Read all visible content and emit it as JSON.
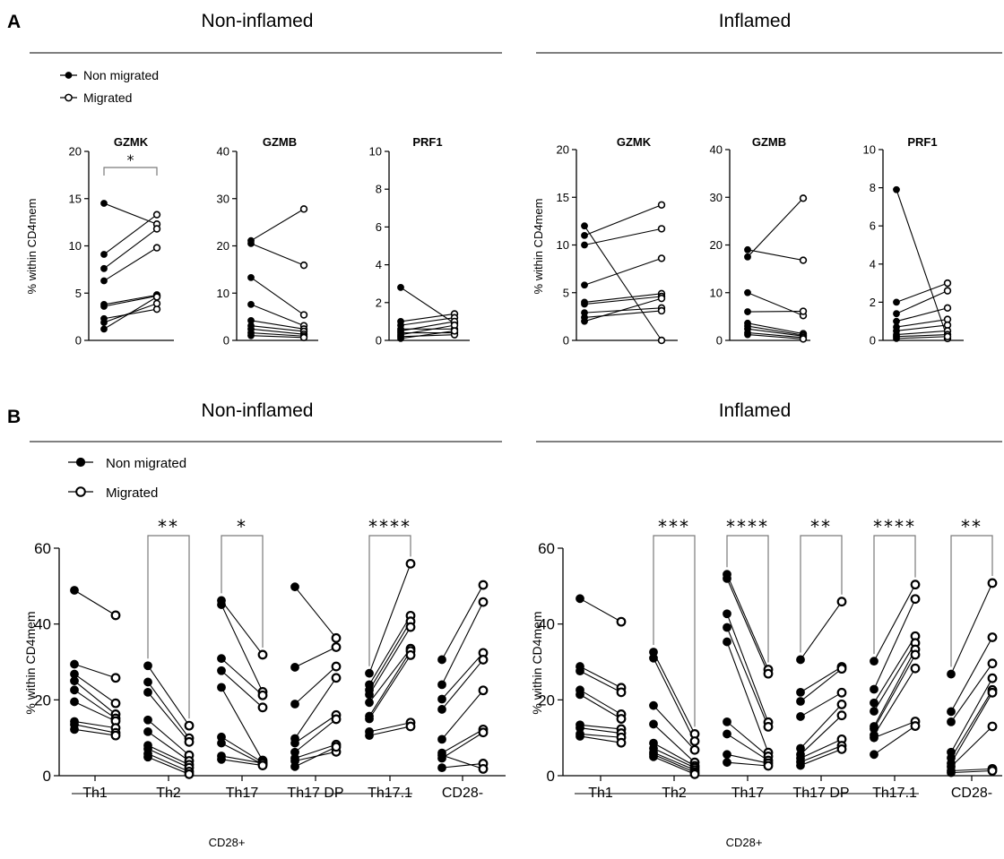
{
  "panels": [
    {
      "letter": "A",
      "headings": [
        "Non-inflamed",
        "Inflamed"
      ]
    },
    {
      "letter": "B",
      "headings": [
        "Non-inflamed",
        "Inflamed"
      ]
    }
  ],
  "legend": {
    "filled": "Non migrated",
    "open": "Migrated"
  },
  "group_label": "CD28+",
  "chart_data": [
    {
      "id": "A-NI-GZMK",
      "type": "line",
      "title": "GZMK",
      "ylabel": "% within CD4mem",
      "ylim": [
        0,
        20
      ],
      "yticks": [
        0,
        5,
        10,
        15,
        20
      ],
      "significance": "*",
      "series": [
        {
          "values": [
            [
              14.5,
              12.3
            ],
            [
              9.1,
              13.3
            ],
            [
              7.6,
              11.8
            ],
            [
              6.3,
              9.8
            ],
            [
              3.8,
              4.8
            ],
            [
              3.6,
              4.7
            ],
            [
              2.3,
              3.3
            ],
            [
              1.9,
              3.9
            ],
            [
              1.2,
              4.6
            ]
          ]
        }
      ]
    },
    {
      "id": "A-NI-GZMB",
      "type": "line",
      "title": "GZMB",
      "ylabel": "",
      "ylim": [
        0,
        40
      ],
      "yticks": [
        0,
        10,
        20,
        30,
        40
      ],
      "series": [
        {
          "values": [
            [
              21.1,
              27.8
            ],
            [
              20.5,
              15.9
            ],
            [
              13.3,
              5.4
            ],
            [
              7.6,
              3.1
            ],
            [
              4.2,
              2.4
            ],
            [
              3.1,
              1.9
            ],
            [
              2.4,
              1.3
            ],
            [
              1.6,
              0.9
            ],
            [
              1.0,
              0.6
            ]
          ]
        }
      ]
    },
    {
      "id": "A-NI-PRF1",
      "type": "line",
      "title": "PRF1",
      "ylabel": "",
      "ylim": [
        0,
        10
      ],
      "yticks": [
        0,
        2,
        4,
        6,
        8,
        10
      ],
      "series": [
        {
          "values": [
            [
              2.8,
              0.9
            ],
            [
              1.0,
              1.4
            ],
            [
              0.8,
              1.2
            ],
            [
              0.6,
              0.6
            ],
            [
              0.5,
              1.0
            ],
            [
              0.4,
              0.4
            ],
            [
              0.3,
              0.8
            ],
            [
              0.2,
              0.3
            ],
            [
              0.1,
              0.5
            ]
          ]
        }
      ]
    },
    {
      "id": "A-I-GZMK",
      "type": "line",
      "title": "GZMK",
      "ylabel": "% within CD4mem",
      "ylim": [
        0,
        20
      ],
      "yticks": [
        0,
        5,
        10,
        15,
        20
      ],
      "series": [
        {
          "values": [
            [
              12.0,
              0.0
            ],
            [
              11.0,
              14.2
            ],
            [
              10.0,
              11.7
            ],
            [
              5.8,
              8.6
            ],
            [
              4.0,
              4.9
            ],
            [
              3.8,
              4.6
            ],
            [
              2.9,
              3.4
            ],
            [
              2.4,
              3.1
            ],
            [
              2.0,
              4.4
            ]
          ]
        }
      ]
    },
    {
      "id": "A-I-GZMB",
      "type": "line",
      "title": "GZMB",
      "ylabel": "",
      "ylim": [
        0,
        40
      ],
      "yticks": [
        0,
        10,
        20,
        30,
        40
      ],
      "series": [
        {
          "values": [
            [
              19.0,
              16.8
            ],
            [
              17.5,
              29.8
            ],
            [
              10.0,
              5.2
            ],
            [
              6.0,
              6.1
            ],
            [
              3.6,
              1.4
            ],
            [
              3.0,
              1.1
            ],
            [
              2.4,
              0.9
            ],
            [
              1.6,
              0.6
            ],
            [
              1.2,
              0.3
            ]
          ]
        }
      ]
    },
    {
      "id": "A-I-PRF1",
      "type": "line",
      "title": "PRF1",
      "ylabel": "",
      "ylim": [
        0,
        10
      ],
      "yticks": [
        0,
        2,
        4,
        6,
        8,
        10
      ],
      "series": [
        {
          "values": [
            [
              7.9,
              0.1
            ],
            [
              2.0,
              3.0
            ],
            [
              1.4,
              2.6
            ],
            [
              1.0,
              1.7
            ],
            [
              0.7,
              1.1
            ],
            [
              0.5,
              0.8
            ],
            [
              0.3,
              0.5
            ],
            [
              0.2,
              0.3
            ],
            [
              0.1,
              0.2
            ]
          ]
        }
      ]
    },
    {
      "id": "B-NI",
      "type": "line",
      "title": "",
      "ylabel": "% within CD4mem",
      "ylim": [
        0,
        60
      ],
      "yticks": [
        0,
        20,
        40,
        60
      ],
      "categories": [
        "Th1",
        "Th2",
        "Th17",
        "Th17 DP",
        "Th17.1",
        "CD28-"
      ],
      "significance": [
        "",
        "**",
        "*",
        "",
        "****",
        ""
      ],
      "groups": [
        {
          "pairs": [
            [
              48.9,
              42.3
            ],
            [
              29.4,
              25.8
            ],
            [
              26.8,
              19.1
            ],
            [
              25.0,
              16.2
            ],
            [
              22.6,
              15.1
            ],
            [
              19.5,
              14.4
            ],
            [
              14.3,
              12.6
            ],
            [
              13.5,
              11.3
            ],
            [
              12.2,
              10.6
            ]
          ]
        },
        {
          "pairs": [
            [
              29.0,
              13.2
            ],
            [
              24.7,
              9.9
            ],
            [
              22.0,
              8.9
            ],
            [
              14.7,
              5.4
            ],
            [
              11.6,
              3.9
            ],
            [
              8.0,
              2.9
            ],
            [
              7.1,
              2.1
            ],
            [
              5.8,
              1.1
            ],
            [
              4.9,
              0.4
            ]
          ]
        },
        {
          "pairs": [
            [
              46.2,
              31.9
            ],
            [
              45.1,
              22.1
            ],
            [
              30.9,
              21.2
            ],
            [
              27.7,
              18.0
            ],
            [
              23.3,
              4.0
            ],
            [
              10.2,
              3.5
            ],
            [
              8.6,
              3.0
            ],
            [
              5.2,
              3.3
            ],
            [
              4.3,
              2.7
            ]
          ]
        },
        {
          "pairs": [
            [
              49.8,
              36.3
            ],
            [
              28.6,
              33.9
            ],
            [
              18.9,
              28.8
            ],
            [
              9.8,
              25.8
            ],
            [
              8.6,
              16.0
            ],
            [
              6.2,
              14.9
            ],
            [
              4.6,
              8.2
            ],
            [
              3.9,
              6.3
            ],
            [
              2.4,
              7.6
            ]
          ]
        },
        {
          "pairs": [
            [
              27.0,
              55.9
            ],
            [
              24.0,
              42.2
            ],
            [
              22.6,
              40.7
            ],
            [
              21.4,
              39.2
            ],
            [
              19.3,
              33.5
            ],
            [
              15.7,
              32.9
            ],
            [
              15.0,
              31.8
            ],
            [
              11.6,
              14.0
            ],
            [
              10.6,
              13.0
            ]
          ]
        },
        {
          "pairs": [
            [
              30.6,
              50.3
            ],
            [
              24.0,
              45.8
            ],
            [
              20.2,
              32.4
            ],
            [
              17.5,
              30.6
            ],
            [
              9.6,
              22.5
            ],
            [
              6.0,
              12.2
            ],
            [
              4.6,
              11.4
            ],
            [
              2.1,
              3.2
            ],
            [
              5.4,
              1.8
            ]
          ]
        }
      ]
    },
    {
      "id": "B-I",
      "type": "line",
      "title": "",
      "ylabel": "% within CD4mem",
      "ylim": [
        0,
        60
      ],
      "yticks": [
        0,
        20,
        40,
        60
      ],
      "categories": [
        "Th1",
        "Th2",
        "Th17",
        "Th17 DP",
        "Th17.1",
        "CD28-"
      ],
      "significance": [
        "",
        "***",
        "****",
        "**",
        "****",
        "**"
      ],
      "groups": [
        {
          "pairs": [
            [
              46.7,
              40.6
            ],
            [
              28.8,
              23.2
            ],
            [
              27.6,
              22.0
            ],
            [
              22.6,
              16.2
            ],
            [
              21.4,
              15.0
            ],
            [
              13.4,
              12.3
            ],
            [
              12.6,
              11.2
            ],
            [
              11.0,
              10.1
            ],
            [
              10.4,
              8.7
            ]
          ]
        },
        {
          "pairs": [
            [
              32.6,
              11.0
            ],
            [
              31.0,
              9.1
            ],
            [
              18.5,
              6.8
            ],
            [
              13.6,
              3.5
            ],
            [
              8.6,
              2.6
            ],
            [
              7.2,
              2.1
            ],
            [
              6.1,
              1.5
            ],
            [
              5.6,
              0.9
            ],
            [
              5.0,
              0.4
            ]
          ]
        },
        {
          "pairs": [
            [
              53.1,
              28.0
            ],
            [
              52.0,
              26.9
            ],
            [
              42.7,
              14.1
            ],
            [
              39.1,
              12.9
            ],
            [
              35.3,
              6.1
            ],
            [
              14.2,
              5.1
            ],
            [
              11.0,
              4.0
            ],
            [
              5.6,
              3.3
            ],
            [
              3.5,
              2.6
            ]
          ]
        },
        {
          "pairs": [
            [
              30.6,
              45.9
            ],
            [
              22.0,
              28.7
            ],
            [
              19.6,
              28.2
            ],
            [
              15.6,
              21.9
            ],
            [
              7.2,
              18.8
            ],
            [
              5.6,
              15.9
            ],
            [
              4.6,
              9.6
            ],
            [
              3.6,
              7.9
            ],
            [
              2.7,
              7.0
            ]
          ]
        },
        {
          "pairs": [
            [
              30.2,
              50.4
            ],
            [
              22.8,
              46.6
            ],
            [
              19.2,
              36.8
            ],
            [
              17.0,
              35.0
            ],
            [
              13.0,
              33.3
            ],
            [
              12.4,
              31.9
            ],
            [
              10.7,
              28.3
            ],
            [
              10.0,
              14.3
            ],
            [
              5.6,
              13.1
            ]
          ]
        },
        {
          "pairs": [
            [
              26.8,
              50.8
            ],
            [
              16.9,
              36.5
            ],
            [
              14.2,
              29.6
            ],
            [
              6.2,
              25.7
            ],
            [
              4.7,
              22.6
            ],
            [
              3.3,
              21.9
            ],
            [
              2.4,
              13.0
            ],
            [
              1.3,
              1.8
            ],
            [
              0.8,
              1.3
            ]
          ]
        }
      ]
    }
  ]
}
